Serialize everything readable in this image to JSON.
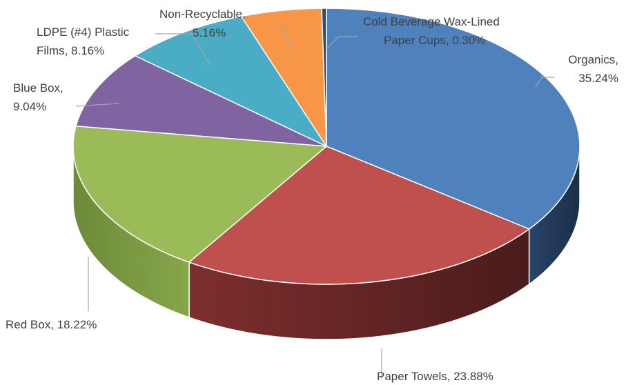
{
  "chart_data": {
    "type": "pie",
    "style": "3d",
    "slices": [
      {
        "name": "Organics",
        "value": 35.24,
        "color": "#4f81bd",
        "side_dark": "#1f3552",
        "label_lines": [
          "Organics,",
          "35.24%"
        ]
      },
      {
        "name": "Paper Towels",
        "value": 23.88,
        "color": "#c0504d",
        "side_dark": "#4a1b1b",
        "side_light": "#7a2d2b",
        "label_lines": [
          "Paper Towels, 23.88%"
        ]
      },
      {
        "name": "Red Box",
        "value": 18.22,
        "color": "#9bbb59",
        "side_dark": "#5c7330",
        "side_light": "#7a983f",
        "label_lines": [
          "Red Box, 18.22%"
        ]
      },
      {
        "name": "Blue Box",
        "value": 9.04,
        "color": "#8064a2",
        "label_lines": [
          "Blue Box,",
          "9.04%"
        ]
      },
      {
        "name": "LDPE (#4) Plastic Films",
        "value": 8.16,
        "color": "#4bacc6",
        "label_lines": [
          "LDPE (#4) Plastic",
          "Films, 8.16%"
        ]
      },
      {
        "name": "Non-Recyclable",
        "value": 5.16,
        "color": "#f79646",
        "label_lines": [
          "Non-Recyclable,",
          "5.16%"
        ]
      },
      {
        "name": "Cold Beverage Wax-Lined Paper Cups",
        "value": 0.3,
        "color": "#2c4d75",
        "label_lines": [
          "Cold Beverage Wax-Lined",
          "Paper Cups, 0.30%"
        ]
      }
    ],
    "legend": "none",
    "data_labels": "outside with leader lines"
  }
}
